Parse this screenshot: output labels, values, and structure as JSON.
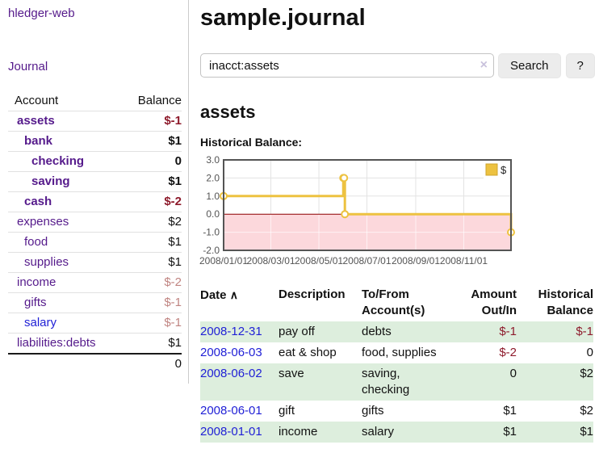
{
  "colors": {
    "purple": "#551a8b",
    "blue": "#1f1fd6",
    "neg": "#8e1b2c",
    "neg-soft": "#c08481",
    "stripe": "#ddeedd",
    "btn-bg": "#ececec"
  },
  "app": {
    "title": "hledger-web"
  },
  "sidebar": {
    "journal_link": "Journal",
    "accounts_header": {
      "account": "Account",
      "balance": "Balance"
    },
    "accounts": [
      {
        "name": "assets",
        "depth": 0,
        "bold": true,
        "link_color": "purple",
        "balance": "$-1",
        "balance_style": "neg-strong"
      },
      {
        "name": "bank",
        "depth": 1,
        "bold": true,
        "link_color": "purple",
        "balance": "$1",
        "balance_style": "pos-strong"
      },
      {
        "name": "checking",
        "depth": 2,
        "bold": true,
        "link_color": "purple",
        "balance": "0",
        "balance_style": "pos-strong"
      },
      {
        "name": "saving",
        "depth": 2,
        "bold": true,
        "link_color": "purple",
        "balance": "$1",
        "balance_style": "pos-strong"
      },
      {
        "name": "cash",
        "depth": 1,
        "bold": true,
        "link_color": "purple",
        "balance": "$-2",
        "balance_style": "neg-strong"
      },
      {
        "name": "expenses",
        "depth": 0,
        "bold": false,
        "link_color": "purple",
        "balance": "$2",
        "balance_style": "pos"
      },
      {
        "name": "food",
        "depth": 1,
        "bold": false,
        "link_color": "purple",
        "balance": "$1",
        "balance_style": "pos"
      },
      {
        "name": "supplies",
        "depth": 1,
        "bold": false,
        "link_color": "purple",
        "balance": "$1",
        "balance_style": "pos"
      },
      {
        "name": "income",
        "depth": 0,
        "bold": false,
        "link_color": "purple",
        "balance": "$-2",
        "balance_style": "neg-soft"
      },
      {
        "name": "gifts",
        "depth": 1,
        "bold": false,
        "link_color": "purple",
        "balance": "$-1",
        "balance_style": "neg-soft"
      },
      {
        "name": "salary",
        "depth": 1,
        "bold": false,
        "link_color": "blue",
        "balance": "$-1",
        "balance_style": "neg-soft"
      },
      {
        "name": "liabilities:debts",
        "depth": 0,
        "bold": false,
        "link_color": "purple",
        "balance": "$1",
        "balance_style": "pos"
      }
    ],
    "total": "0"
  },
  "header": {
    "title": "sample.journal"
  },
  "search": {
    "query": "inacct:assets",
    "clear_icon": "×",
    "search_label": "Search",
    "help_label": "?"
  },
  "report": {
    "heading": "assets",
    "chart_label": "Historical Balance:"
  },
  "chart_data": {
    "type": "line",
    "step": true,
    "title": "Historical Balance:",
    "legend": [
      {
        "label": "$",
        "color": "#edc240"
      }
    ],
    "legend_position": "top-right",
    "grid": true,
    "series": [
      {
        "name": "$",
        "points": [
          {
            "date": "2008-01-01",
            "day": 0,
            "value": 1
          },
          {
            "date": "2008-06-01",
            "day": 152,
            "value": 2
          },
          {
            "date": "2008-06-02",
            "day": 153,
            "value": 2
          },
          {
            "date": "2008-06-03",
            "day": 154,
            "value": 0
          },
          {
            "date": "2008-12-31",
            "day": 365,
            "value": -1
          }
        ]
      }
    ],
    "xlim_days": [
      0,
      365
    ],
    "ylim": [
      -2,
      3
    ],
    "yticks": [
      {
        "value": 3,
        "label": "3.0"
      },
      {
        "value": 2,
        "label": "2.0"
      },
      {
        "value": 1,
        "label": "1.0"
      },
      {
        "value": 0,
        "label": "0.0"
      },
      {
        "value": -1,
        "label": "-1.0"
      },
      {
        "value": -2,
        "label": "-2.0"
      }
    ],
    "xticks": [
      {
        "day": 0,
        "label": "2008/01/01"
      },
      {
        "day": 60,
        "label": "2008/03/01"
      },
      {
        "day": 121,
        "label": "2008/05/01"
      },
      {
        "day": 182,
        "label": "2008/07/01"
      },
      {
        "day": 244,
        "label": "2008/09/01"
      },
      {
        "day": 305,
        "label": "2008/11/01"
      }
    ],
    "colors": {
      "line": "#edc240",
      "marker_fill": "#ffffff",
      "zero_line": "#8b0000",
      "negative_region": "#fcd8dc",
      "grid": "#e3e3e3",
      "grid_on_pink": "#ffffff",
      "border": "#545454",
      "tick_text": "#545454",
      "legend_swatch_border": "#cfa42c"
    }
  },
  "journal": {
    "columns": [
      "Date",
      "Description",
      "To/From Account(s)",
      "Amount Out/In",
      "Historical Balance"
    ],
    "sort_icon": "∧",
    "rows": [
      {
        "date": "2008-12-31",
        "description": "pay off",
        "accounts": "debts",
        "amount": "$-1",
        "amount_neg": true,
        "balance": "$-1",
        "balance_neg": true,
        "shaded": true
      },
      {
        "date": "2008-06-03",
        "description": "eat & shop",
        "accounts": "food, supplies",
        "amount": "$-2",
        "amount_neg": true,
        "balance": "0",
        "balance_neg": false,
        "shaded": false
      },
      {
        "date": "2008-06-02",
        "description": "save",
        "accounts": "saving, checking",
        "amount": "0",
        "amount_neg": false,
        "balance": "$2",
        "balance_neg": false,
        "shaded": true
      },
      {
        "date": "2008-06-01",
        "description": "gift",
        "accounts": "gifts",
        "amount": "$1",
        "amount_neg": false,
        "balance": "$2",
        "balance_neg": false,
        "shaded": false
      },
      {
        "date": "2008-01-01",
        "description": "income",
        "accounts": "salary",
        "amount": "$1",
        "amount_neg": false,
        "balance": "$1",
        "balance_neg": false,
        "shaded": true
      }
    ]
  }
}
